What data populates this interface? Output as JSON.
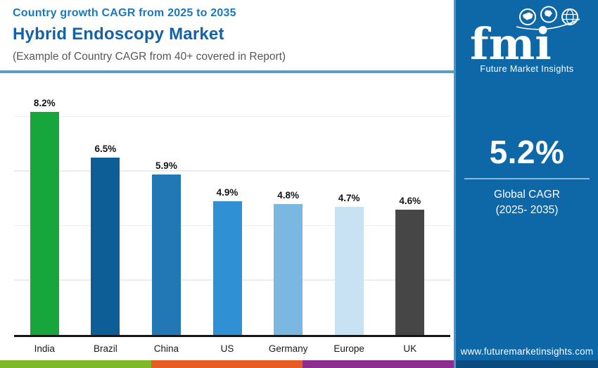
{
  "header": {
    "kicker": "Country growth CAGR from 2025 to 2035",
    "title": "Hybrid Endoscopy Market",
    "subtitle": "(Example of Country CAGR from 40+ covered in Report)"
  },
  "chart_data": {
    "type": "bar",
    "title": "Country growth CAGR from 2025 to 2035 — Hybrid Endoscopy Market",
    "categories": [
      "India",
      "Brazil",
      "China",
      "US",
      "Germany",
      "Europe",
      "UK"
    ],
    "values": [
      8.2,
      6.5,
      5.9,
      4.9,
      4.8,
      4.7,
      4.6
    ],
    "value_labels": [
      "8.2%",
      "6.5%",
      "5.9%",
      "4.9%",
      "4.8%",
      "4.7%",
      "4.6%"
    ],
    "bar_colors": [
      "#17A63B",
      "#0D5E97",
      "#2278B5",
      "#3090D4",
      "#7AB8E2",
      "#C9E2F3",
      "#464646"
    ],
    "xlabel": "",
    "ylabel": "",
    "ylim": [
      0,
      9.2
    ],
    "gridline_values": [
      2,
      4,
      6,
      8
    ],
    "grid": "horizontal",
    "legend": "none"
  },
  "sidebar": {
    "logo_text": "fmi",
    "logo_tagline": "Future Market Insights",
    "stat_value": "5.2%",
    "stat_label_line1": "Global CAGR",
    "stat_label_line2": "(2025- 2035)",
    "website": "www.futuremarketinsights.com"
  },
  "colors": {
    "sidebar_background": "#0E67A6",
    "sidebar_bottom_strip": "#0A4C80",
    "header_divider": "#5E9AC8",
    "footer_strip": [
      "#7FB927",
      "#E65C23",
      "#8E2D90"
    ],
    "gridline": "#ECECEC",
    "axis_line": "#151515"
  }
}
